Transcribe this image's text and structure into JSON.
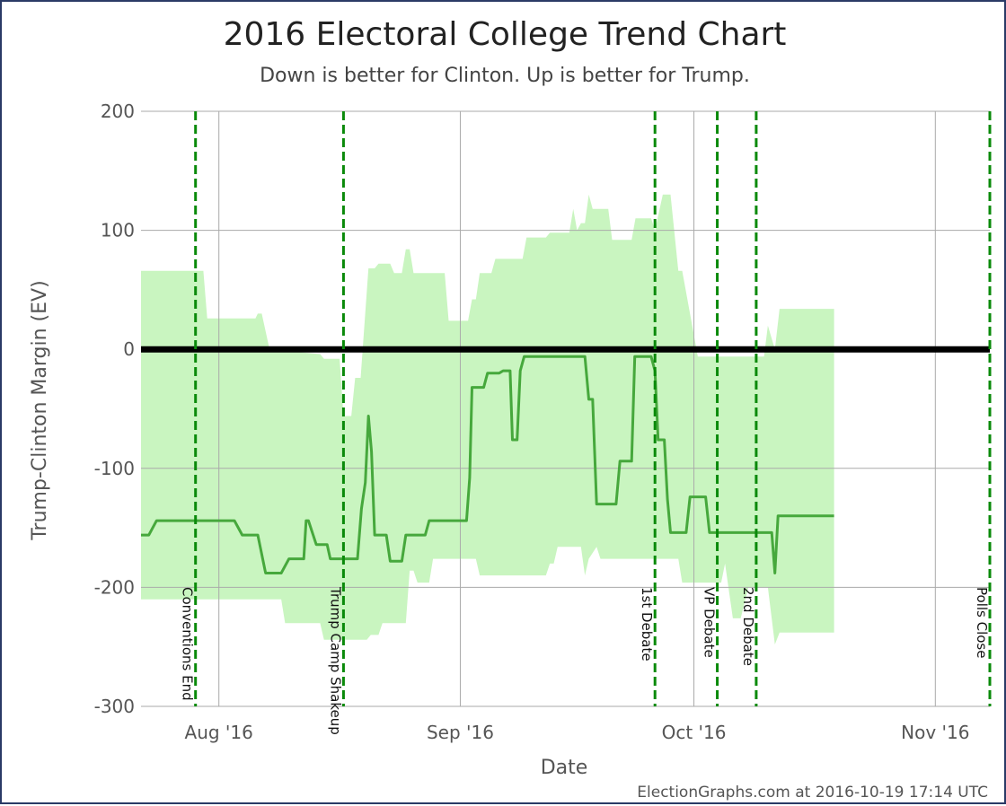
{
  "chart_data": {
    "type": "line",
    "title": "2016 Electoral College Trend Chart",
    "subtitle": "Down is better for Clinton. Up is better for Trump.",
    "xlabel": "Date",
    "ylabel": "Trump-Clinton Margin (EV)",
    "ylim": [
      -300,
      200
    ],
    "xlim": [
      "2016-07-22",
      "2016-11-08"
    ],
    "grid": true,
    "y_ticks": [
      200,
      100,
      0,
      -100,
      -200,
      -300
    ],
    "x_ticks": [
      {
        "date": "2016-08-01",
        "label": "Aug '16"
      },
      {
        "date": "2016-09-01",
        "label": "Sep '16"
      },
      {
        "date": "2016-10-01",
        "label": "Oct '16"
      },
      {
        "date": "2016-11-01",
        "label": "Nov '16"
      }
    ],
    "zero_line": 0,
    "events": [
      {
        "date": "2016-07-29",
        "label": "Conventions End"
      },
      {
        "date": "2016-08-17",
        "label": "Trump Camp Shakeup"
      },
      {
        "date": "2016-09-26",
        "label": "1st Debate"
      },
      {
        "date": "2016-10-04",
        "label": "VP Debate"
      },
      {
        "date": "2016-10-09",
        "label": "2nd Debate"
      },
      {
        "date": "2016-11-08",
        "label": "Polls Close"
      }
    ],
    "series": [
      {
        "type": "line",
        "color": "#46a83c",
        "points": [
          [
            "2016-07-22",
            -156
          ],
          [
            "2016-07-23",
            -156
          ],
          [
            "2016-07-24",
            -144
          ],
          [
            "2016-07-25",
            -144
          ],
          [
            "2016-08-03",
            -144
          ],
          [
            "2016-08-04",
            -156
          ],
          [
            "2016-08-06",
            -156
          ],
          [
            "2016-08-07",
            -188
          ],
          [
            "2016-08-09",
            -188
          ],
          [
            "2016-08-10",
            -176
          ],
          [
            "2016-08-11.9",
            -176
          ],
          [
            "2016-08-12.2",
            -144
          ],
          [
            "2016-08-12.5",
            -144
          ],
          [
            "2016-08-13.5",
            -164
          ],
          [
            "2016-08-14.9",
            -164
          ],
          [
            "2016-08-15.3",
            -176
          ],
          [
            "2016-08-18.8",
            -176
          ],
          [
            "2016-08-19.3",
            -134
          ],
          [
            "2016-08-19.8",
            -112
          ],
          [
            "2016-08-20.2",
            -56
          ],
          [
            "2016-08-20.6",
            -86
          ],
          [
            "2016-08-21",
            -156
          ],
          [
            "2016-08-22.5",
            -156
          ],
          [
            "2016-08-23",
            -178
          ],
          [
            "2016-08-24.5",
            -178
          ],
          [
            "2016-08-25",
            -156
          ],
          [
            "2016-08-27.5",
            -156
          ],
          [
            "2016-08-28",
            -144
          ],
          [
            "2016-09-01.8",
            -144
          ],
          [
            "2016-09-02.2",
            -108
          ],
          [
            "2016-09-02.5",
            -32
          ],
          [
            "2016-09-04",
            -32
          ],
          [
            "2016-09-04.5",
            -20
          ],
          [
            "2016-09-06",
            -20
          ],
          [
            "2016-09-06.5",
            -18
          ],
          [
            "2016-09-07.4",
            -18
          ],
          [
            "2016-09-07.7",
            -76
          ],
          [
            "2016-09-08.3",
            -76
          ],
          [
            "2016-09-08.7",
            -18
          ],
          [
            "2016-09-09.2",
            -6
          ],
          [
            "2016-09-17",
            -6
          ],
          [
            "2016-09-17.5",
            -42
          ],
          [
            "2016-09-18",
            -42
          ],
          [
            "2016-09-18.5",
            -130
          ],
          [
            "2016-09-21",
            -130
          ],
          [
            "2016-09-21.5",
            -94
          ],
          [
            "2016-09-23",
            -94
          ],
          [
            "2016-09-23.4",
            -6
          ],
          [
            "2016-09-25.5",
            -6
          ],
          [
            "2016-09-26",
            -18
          ],
          [
            "2016-09-26.4",
            -76
          ],
          [
            "2016-09-27.2",
            -76
          ],
          [
            "2016-09-27.6",
            -126
          ],
          [
            "2016-09-28",
            -154
          ],
          [
            "2016-09-30",
            -154
          ],
          [
            "2016-09-30.5",
            -124
          ],
          [
            "2016-10-02.5",
            -124
          ],
          [
            "2016-10-03",
            -154
          ],
          [
            "2016-10-11",
            -154
          ],
          [
            "2016-10-11.4",
            -188
          ],
          [
            "2016-10-11.8",
            -140
          ],
          [
            "2016-10-19",
            -140
          ]
        ]
      },
      {
        "type": "band",
        "color": "#c9f5c0",
        "upper": [
          [
            "2016-07-22",
            66
          ],
          [
            "2016-07-30",
            66
          ],
          [
            "2016-07-30.5",
            26
          ],
          [
            "2016-08-05.7",
            26
          ],
          [
            "2016-08-06",
            30
          ],
          [
            "2016-08-06.5",
            30
          ],
          [
            "2016-08-07.5",
            0
          ],
          [
            "2016-08-14",
            -4
          ],
          [
            "2016-08-14.5",
            -8
          ],
          [
            "2016-08-16.5",
            -8
          ],
          [
            "2016-08-17",
            -56
          ],
          [
            "2016-08-18",
            -56
          ],
          [
            "2016-08-18.5",
            -24
          ],
          [
            "2016-08-19.2",
            -24
          ],
          [
            "2016-08-20.2",
            68
          ],
          [
            "2016-08-21",
            68
          ],
          [
            "2016-08-21.5",
            72
          ],
          [
            "2016-08-23",
            72
          ],
          [
            "2016-08-23.5",
            64
          ],
          [
            "2016-08-24.5",
            64
          ],
          [
            "2016-08-25",
            84
          ],
          [
            "2016-08-25.5",
            84
          ],
          [
            "2016-08-26",
            64
          ],
          [
            "2016-08-30",
            64
          ],
          [
            "2016-08-30.5",
            24
          ],
          [
            "2016-09-02",
            24
          ],
          [
            "2016-09-02.5",
            42
          ],
          [
            "2016-09-03",
            42
          ],
          [
            "2016-09-03.5",
            64
          ],
          [
            "2016-09-05",
            64
          ],
          [
            "2016-09-05.5",
            76
          ],
          [
            "2016-09-09",
            76
          ],
          [
            "2016-09-09.5",
            94
          ],
          [
            "2016-09-12",
            94
          ],
          [
            "2016-09-12.5",
            98
          ],
          [
            "2016-09-15",
            98
          ],
          [
            "2016-09-15.5",
            118
          ],
          [
            "2016-09-16",
            100
          ],
          [
            "2016-09-16.5",
            106
          ],
          [
            "2016-09-17",
            106
          ],
          [
            "2016-09-17.5",
            130
          ],
          [
            "2016-09-18",
            118
          ],
          [
            "2016-09-20",
            118
          ],
          [
            "2016-09-20.5",
            92
          ],
          [
            "2016-09-23",
            92
          ],
          [
            "2016-09-23.5",
            110
          ],
          [
            "2016-09-25.5",
            110
          ],
          [
            "2016-09-26",
            100
          ],
          [
            "2016-09-27",
            130
          ],
          [
            "2016-09-28",
            130
          ],
          [
            "2016-09-29",
            66
          ],
          [
            "2016-09-29.5",
            66
          ],
          [
            "2016-10-01.5",
            -6
          ],
          [
            "2016-10-10",
            -6
          ],
          [
            "2016-10-10.5",
            20
          ],
          [
            "2016-10-11.4",
            0
          ],
          [
            "2016-10-12",
            34
          ],
          [
            "2016-10-19",
            34
          ]
        ],
        "lower": [
          [
            "2016-07-22",
            -210
          ],
          [
            "2016-08-09",
            -210
          ],
          [
            "2016-08-09.5",
            -230
          ],
          [
            "2016-08-14",
            -230
          ],
          [
            "2016-08-14.5",
            -244
          ],
          [
            "2016-08-20",
            -244
          ],
          [
            "2016-08-20.5",
            -240
          ],
          [
            "2016-08-21.5",
            -240
          ],
          [
            "2016-08-22",
            -230
          ],
          [
            "2016-08-25",
            -230
          ],
          [
            "2016-08-25.5",
            -186
          ],
          [
            "2016-08-26",
            -186
          ],
          [
            "2016-08-26.5",
            -196
          ],
          [
            "2016-08-28",
            -196
          ],
          [
            "2016-08-28.5",
            -176
          ],
          [
            "2016-09-03",
            -176
          ],
          [
            "2016-09-03.5",
            -190
          ],
          [
            "2016-09-12",
            -190
          ],
          [
            "2016-09-12.5",
            -180
          ],
          [
            "2016-09-13",
            -180
          ],
          [
            "2016-09-13.5",
            -166
          ],
          [
            "2016-09-16.5",
            -166
          ],
          [
            "2016-09-17",
            -190
          ],
          [
            "2016-09-17.5",
            -176
          ],
          [
            "2016-09-18.5",
            -166
          ],
          [
            "2016-09-19",
            -176
          ],
          [
            "2016-09-29",
            -176
          ],
          [
            "2016-09-29.5",
            -196
          ],
          [
            "2016-10-04.5",
            -196
          ],
          [
            "2016-10-05",
            -180
          ],
          [
            "2016-10-06",
            -226
          ],
          [
            "2016-10-07",
            -226
          ],
          [
            "2016-10-08",
            -200
          ],
          [
            "2016-10-09",
            -200
          ],
          [
            "2016-10-10.5",
            -200
          ],
          [
            "2016-10-11.4",
            -248
          ],
          [
            "2016-10-12",
            -238
          ],
          [
            "2016-10-19",
            -238
          ]
        ]
      }
    ]
  },
  "footer": {
    "credit": "ElectionGraphs.com at 2016-10-19 17:14 UTC"
  }
}
